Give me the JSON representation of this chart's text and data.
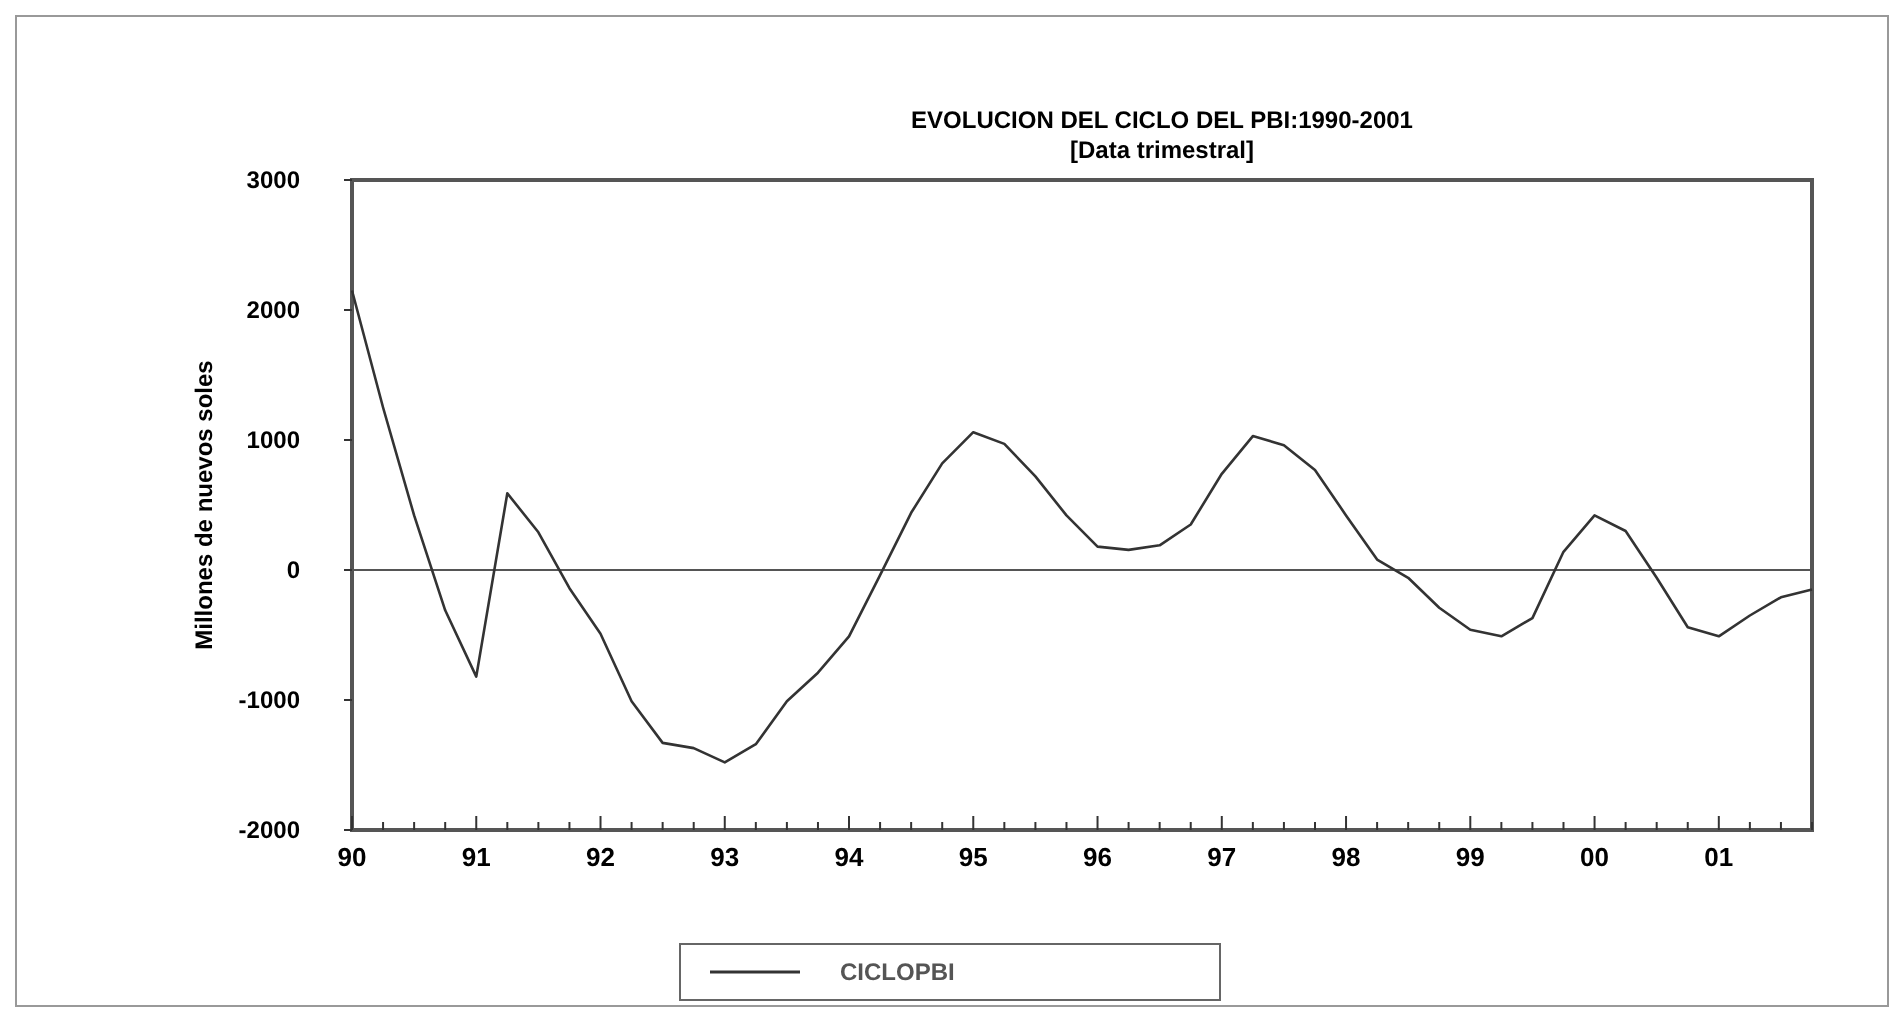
{
  "chart_data": {
    "type": "line",
    "title": "EVOLUCION DEL CICLO DEL PBI:1990-2001",
    "subtitle": "[Data trimestral]",
    "ylabel": "Millones de nuevos soles",
    "x": [
      1990,
      1990.25,
      1990.5,
      1990.75,
      1991,
      1991.25,
      1991.5,
      1991.75,
      1992,
      1992.25,
      1992.5,
      1992.75,
      1993,
      1993.25,
      1993.5,
      1993.75,
      1994,
      1994.25,
      1994.5,
      1994.75,
      1995,
      1995.25,
      1995.5,
      1995.75,
      1996,
      1996.25,
      1996.5,
      1996.75,
      1997,
      1997.25,
      1997.5,
      1997.75,
      1998,
      1998.25,
      1998.5,
      1998.75,
      1999,
      1999.25,
      1999.5,
      1999.75,
      2000,
      2000.25,
      2000.5,
      2000.75,
      2001,
      2001.25,
      2001.5,
      2001.75
    ],
    "series": [
      {
        "name": "CICLOPBI",
        "color": "#333333",
        "values": [
          2150,
          1250,
          420,
          -310,
          -820,
          590,
          290,
          -140,
          -490,
          -1010,
          -1330,
          -1370,
          -1480,
          -1340,
          -1010,
          -790,
          -510,
          -40,
          440,
          820,
          1060,
          970,
          720,
          420,
          180,
          155,
          190,
          350,
          740,
          1030,
          960,
          770,
          420,
          80,
          -60,
          -290,
          -460,
          -510,
          -370,
          140,
          420,
          300,
          -60,
          -440,
          -510,
          -350,
          -210,
          -150
        ]
      }
    ],
    "xlim": [
      1990,
      2001.75
    ],
    "xticks": [
      {
        "value": 1990,
        "label": "90"
      },
      {
        "value": 1991,
        "label": "91"
      },
      {
        "value": 1992,
        "label": "92"
      },
      {
        "value": 1993,
        "label": "93"
      },
      {
        "value": 1994,
        "label": "94"
      },
      {
        "value": 1995,
        "label": "95"
      },
      {
        "value": 1996,
        "label": "96"
      },
      {
        "value": 1997,
        "label": "97"
      },
      {
        "value": 1998,
        "label": "98"
      },
      {
        "value": 1999,
        "label": "99"
      },
      {
        "value": 2000,
        "label": "00"
      },
      {
        "value": 2001,
        "label": "01"
      }
    ],
    "ylim": [
      -2000,
      3000
    ],
    "yticks": [
      -2000,
      -1000,
      0,
      1000,
      2000,
      3000
    ],
    "ref_lines": [
      {
        "axis": "y",
        "value": 0,
        "color": "#555555"
      }
    ],
    "grid": false,
    "legend": "bottom",
    "marker": "none",
    "line_style": "solid"
  }
}
